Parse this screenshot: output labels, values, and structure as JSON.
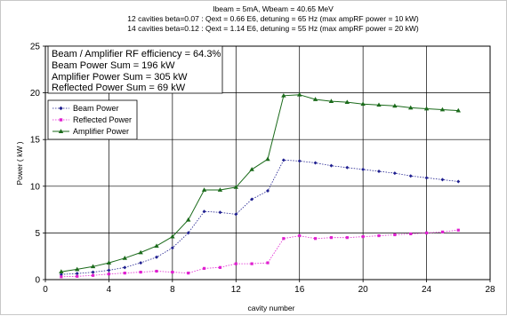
{
  "chart_data": {
    "type": "line",
    "title_lines": [
      "Ibeam = 5mA, Wbeam = 40.65 MeV",
      "12 cavities beta=0.07 : Qext = 0.66 E6, detuning = 65 Hz (max ampRF power = 10 kW)",
      "14 cavities beta=0.12 : Qext = 1.14 E6, detuning = 55 Hz (max ampRF power = 20 kW)"
    ],
    "xlabel": "cavity number",
    "ylabel": "Power ( kW )",
    "xlim": [
      0,
      28
    ],
    "ylim": [
      0,
      25
    ],
    "xticks": [
      0,
      4,
      8,
      12,
      16,
      20,
      24,
      28
    ],
    "yticks": [
      0,
      5,
      10,
      15,
      20,
      25
    ],
    "grid": true,
    "legend_position": "upper-left",
    "info_box": [
      "Beam / Amplifier RF efficiency = 64.3%",
      "Beam Power Sum = 196 kW",
      "Amplifier Power Sum = 305 kW",
      "Reflected Power Sum = 69 kW"
    ],
    "x": [
      1,
      2,
      3,
      4,
      5,
      6,
      7,
      8,
      9,
      10,
      11,
      12,
      13,
      14,
      15,
      16,
      17,
      18,
      19,
      20,
      21,
      22,
      23,
      24,
      25,
      26
    ],
    "series": [
      {
        "name": "Beam Power",
        "color": "#1f1f8f",
        "marker": "diamond",
        "values": [
          0.55,
          0.65,
          0.8,
          1.0,
          1.3,
          1.8,
          2.4,
          3.4,
          5.0,
          7.3,
          7.2,
          7.0,
          8.6,
          9.5,
          12.8,
          12.7,
          12.5,
          12.2,
          12.0,
          11.8,
          11.6,
          11.4,
          11.1,
          10.9,
          10.7,
          10.5
        ]
      },
      {
        "name": "Reflected Power",
        "color": "#e020d0",
        "marker": "square",
        "values": [
          0.3,
          0.35,
          0.45,
          0.6,
          0.7,
          0.8,
          0.9,
          0.8,
          0.7,
          1.2,
          1.3,
          1.7,
          1.7,
          1.8,
          4.4,
          4.7,
          4.4,
          4.5,
          4.5,
          4.6,
          4.7,
          4.8,
          4.9,
          5.0,
          5.1,
          5.3
        ]
      },
      {
        "name": "Amplifier Power",
        "color": "#1a6a1a",
        "marker": "triangle",
        "values": [
          0.85,
          1.1,
          1.4,
          1.8,
          2.3,
          2.9,
          3.6,
          4.6,
          6.4,
          9.6,
          9.6,
          9.9,
          11.8,
          12.9,
          19.7,
          19.8,
          19.3,
          19.1,
          19.0,
          18.8,
          18.7,
          18.6,
          18.4,
          18.3,
          18.2,
          18.1
        ]
      }
    ]
  }
}
